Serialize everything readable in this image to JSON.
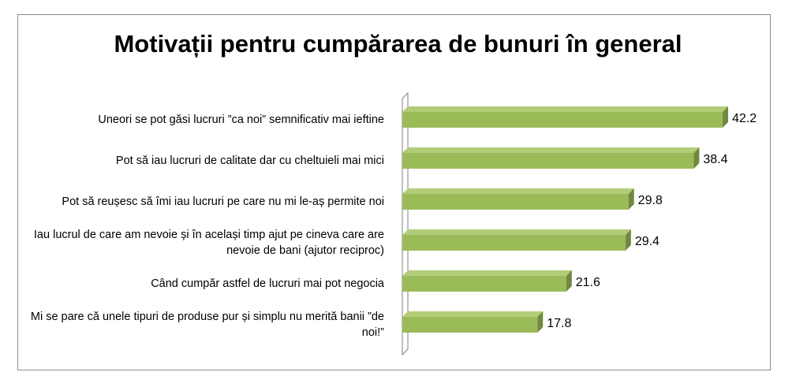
{
  "chart_data": {
    "type": "bar",
    "orientation": "horizontal",
    "title": "Motivații pentru cumpărarea de bunuri în general",
    "xlabel": "",
    "ylabel": "",
    "categories": [
      "Uneori se pot găsi lucruri ”ca noi” semnificativ mai ieftine",
      "Pot să iau lucruri de calitate dar cu cheltuieli mai mici",
      "Pot să reușesc să îmi iau lucruri pe care nu mi le-aș permite noi",
      "Iau lucrul de care am nevoie și în același timp ajut pe cineva care are nevoie de bani (ajutor reciproc)",
      "Când cumpăr astfel de lucruri mai pot negocia",
      "Mi se pare că unele tipuri de produse pur și simplu nu merită banii ”de noi!”"
    ],
    "values": [
      42.2,
      38.4,
      29.8,
      29.4,
      21.6,
      17.8
    ],
    "value_labels": [
      "42.2",
      "38.4",
      "29.8",
      "29.4",
      "21.6",
      "17.8"
    ],
    "xlim": [
      0,
      45
    ],
    "grid": false,
    "legend": "none",
    "bar_color": "#9bbb59",
    "bar_top_color": "#b3cc7a",
    "bar_side_color": "#71893f"
  }
}
